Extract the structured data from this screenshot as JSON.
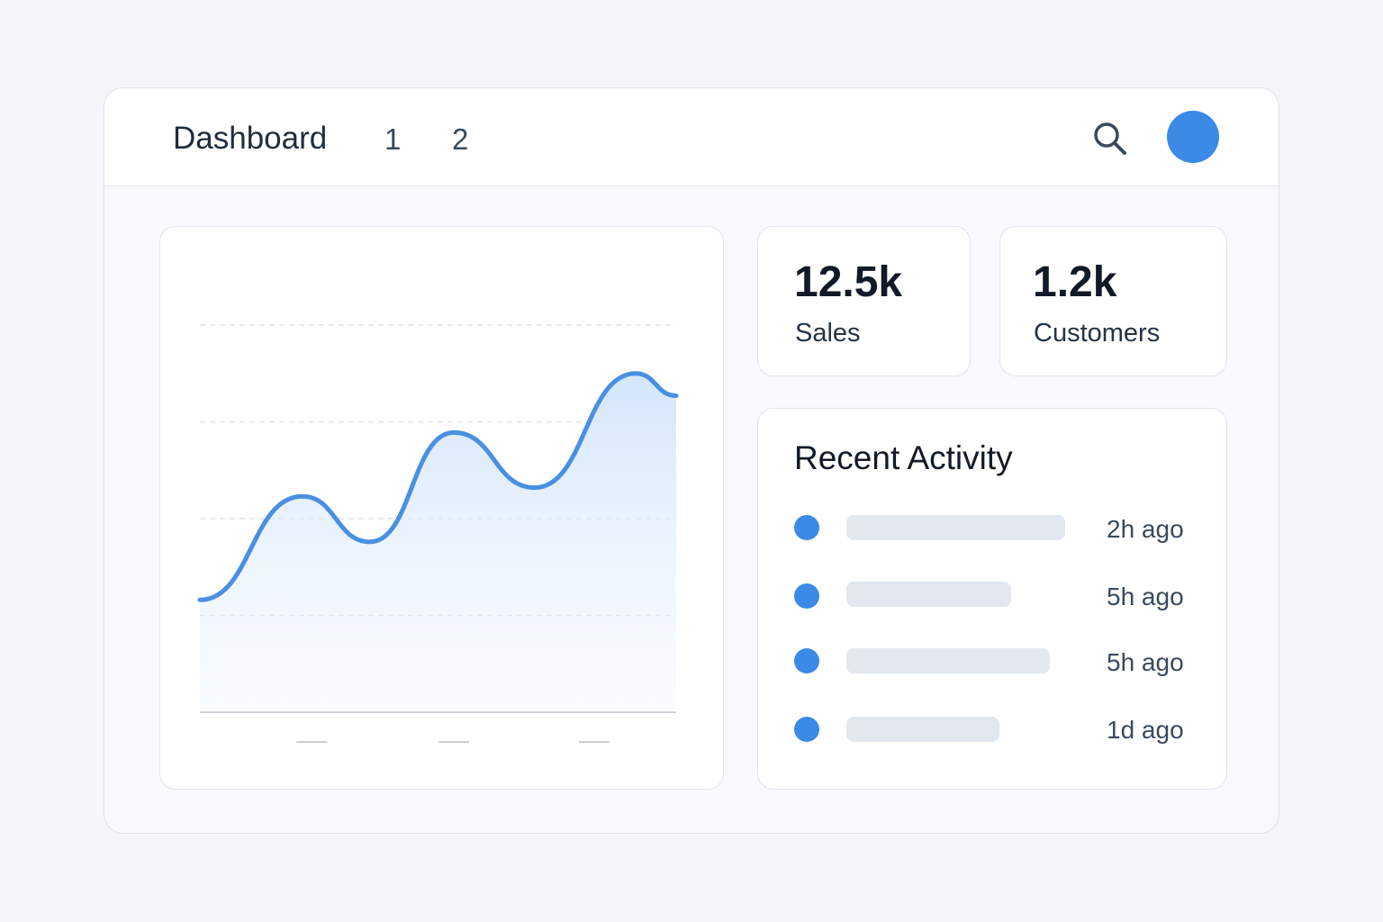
{
  "header": {
    "title": "Dashboard",
    "nav": [
      "1",
      "2"
    ]
  },
  "stats": [
    {
      "value": "12.5k",
      "label": "Sales"
    },
    {
      "value": "1.2k",
      "label": "Customers"
    }
  ],
  "activity": {
    "title": "Recent Activity",
    "items": [
      "2h ago",
      "5h ago",
      "5h ago",
      "1d ago"
    ]
  },
  "chart_data": {
    "type": "line",
    "color": "#4a90e2",
    "x": [
      0,
      2.15,
      3.57,
      5.33,
      7.03,
      9.15,
      10
    ],
    "values": [
      1.16,
      2.23,
      1.76,
      2.89,
      2.32,
      3.5,
      3.27
    ],
    "xlim": [
      0,
      10
    ],
    "ylim": [
      0,
      4
    ],
    "yticks": [
      1,
      2,
      3,
      4
    ],
    "xticks": [
      2.35,
      5.33,
      8.28
    ],
    "grid": true
  }
}
